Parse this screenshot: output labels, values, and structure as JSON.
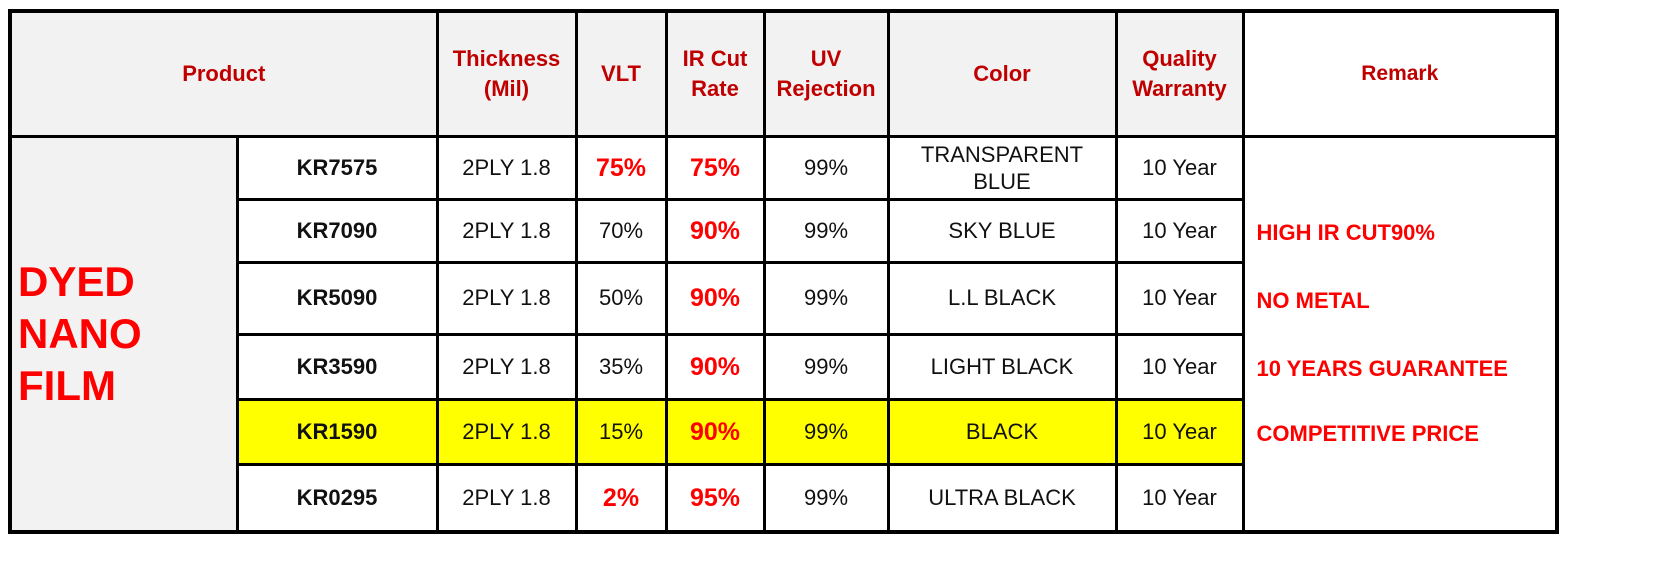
{
  "headers": {
    "product": "Product",
    "thickness": "Thickness\n(Mil)",
    "vlt": "VLT",
    "ir_cut": "IR Cut\nRate",
    "uv": "UV\nRejection",
    "color": "Color",
    "warranty": "Quality\nWarranty",
    "remark": "Remark"
  },
  "category": "DYED\nNANO\nFILM",
  "rows": [
    {
      "code": "KR7575",
      "thickness": "2PLY 1.8",
      "vlt": "75%",
      "ir": "75%",
      "uv": "99%",
      "color": "TRANSPARENT\nBLUE",
      "warranty": "10 Year"
    },
    {
      "code": "KR7090",
      "thickness": "2PLY 1.8",
      "vlt": "70%",
      "ir": "90%",
      "uv": "99%",
      "color": "SKY BLUE",
      "warranty": "10 Year"
    },
    {
      "code": "KR5090",
      "thickness": "2PLY 1.8",
      "vlt": "50%",
      "ir": "90%",
      "uv": "99%",
      "color": "L.L BLACK",
      "warranty": "10 Year"
    },
    {
      "code": "KR3590",
      "thickness": "2PLY 1.8",
      "vlt": "35%",
      "ir": "90%",
      "uv": "99%",
      "color": "LIGHT BLACK",
      "warranty": "10 Year"
    },
    {
      "code": "KR1590",
      "thickness": "2PLY 1.8",
      "vlt": "15%",
      "ir": "90%",
      "uv": "99%",
      "color": "BLACK",
      "warranty": "10 Year"
    },
    {
      "code": "KR0295",
      "thickness": "2PLY 1.8",
      "vlt": "2%",
      "ir": "95%",
      "uv": "99%",
      "color": "ULTRA BLACK",
      "warranty": "10 Year"
    }
  ],
  "remarks": [
    "HIGH IR CUT90%",
    "NO METAL",
    "10 YEARS GUARANTEE",
    "COMPETITIVE PRICE"
  ],
  "colors": {
    "header_text": "#c00000",
    "accent_red": "#ff0000",
    "highlight": "#ffff00",
    "header_bg": "#f2f2f2"
  }
}
